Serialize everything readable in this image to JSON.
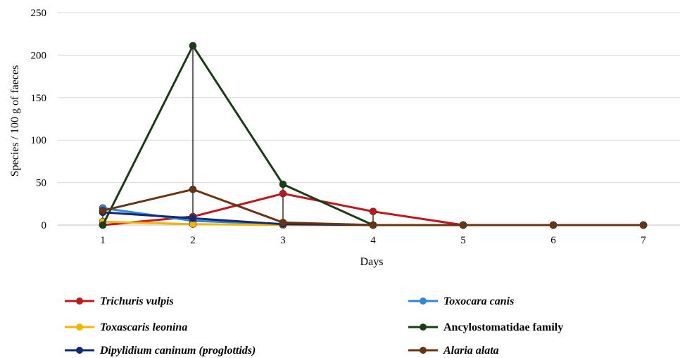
{
  "chart_data": {
    "type": "line",
    "xlabel": "Days",
    "ylabel": "Species / 100 g of faeces",
    "x": [
      1,
      2,
      3,
      4,
      5,
      6,
      7
    ],
    "x_tick_labels": [
      "1",
      "2",
      "3",
      "4",
      "5",
      "6",
      "7"
    ],
    "ylim": [
      0,
      250
    ],
    "y_ticks": [
      0,
      50,
      100,
      150,
      200,
      250
    ],
    "y_tick_labels": [
      "0",
      "50",
      "100",
      "150",
      "200",
      "250"
    ],
    "grid": "horizontal",
    "legend_position": "bottom",
    "series": [
      {
        "name": "Trichuris vulpis",
        "color": "#c0161c",
        "italic": true,
        "values": [
          0,
          10,
          37,
          16,
          0,
          0,
          0
        ]
      },
      {
        "name": "Toxocara canis",
        "color": "#2e86de",
        "italic": true,
        "values": [
          20,
          5,
          1,
          0,
          0,
          0,
          0
        ]
      },
      {
        "name": "Toxascaris leonina",
        "color": "#f4b400",
        "italic": true,
        "values": [
          4,
          1,
          0,
          0,
          0,
          0,
          0
        ]
      },
      {
        "name": "Ancylostomatidae family",
        "color": "#1a3d16",
        "italic": false,
        "values": [
          0,
          211,
          48,
          0,
          0,
          0,
          0
        ]
      },
      {
        "name": "Dipylidium caninum (proglottids)",
        "color": "#0f2a78",
        "italic": true,
        "values": [
          15,
          8,
          1,
          0,
          0,
          0,
          0
        ]
      },
      {
        "name": "Alaria alata",
        "color": "#6b3410",
        "italic": true,
        "values": [
          17,
          42,
          3,
          0,
          0,
          0,
          0
        ]
      }
    ],
    "drop_lines": true
  }
}
